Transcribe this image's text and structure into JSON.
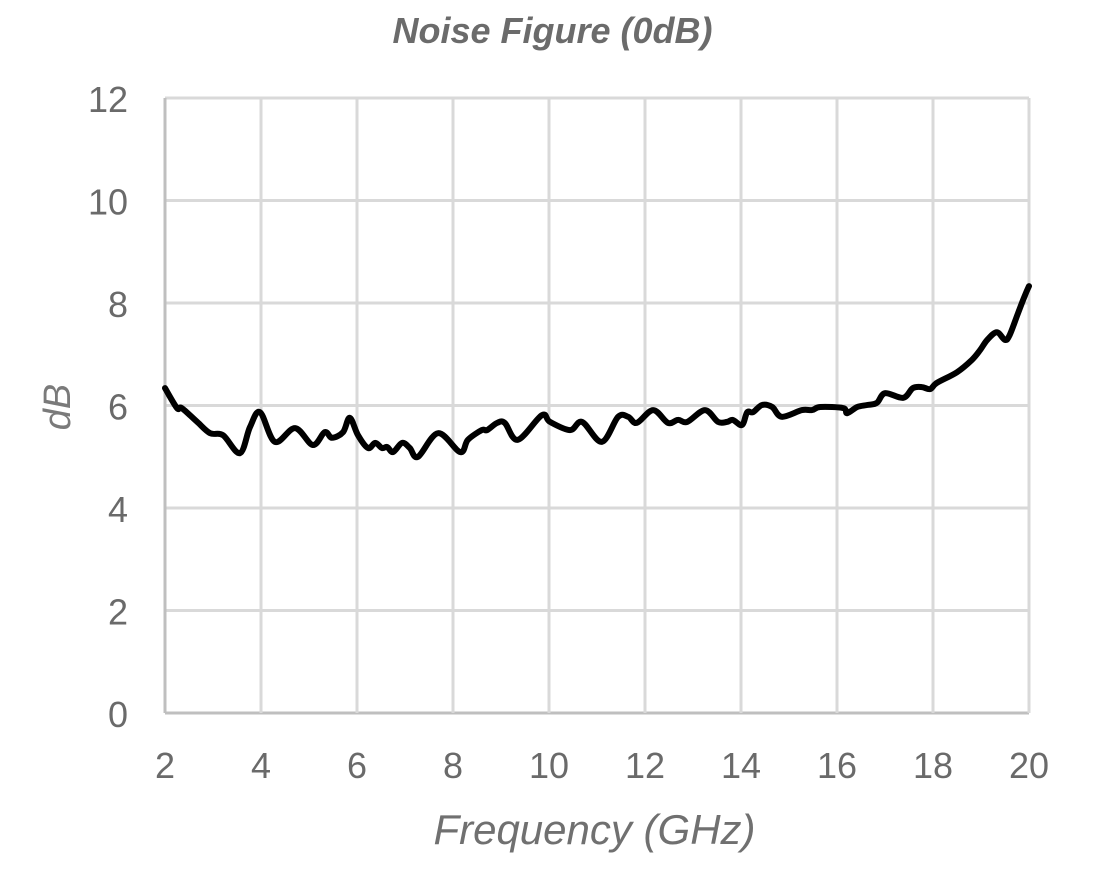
{
  "chart_data": {
    "type": "line",
    "title": "Noise Figure (0dB)",
    "xlabel": "Frequency (GHz)",
    "ylabel": "dB",
    "xlim": [
      2,
      20
    ],
    "ylim": [
      0,
      12
    ],
    "x_ticks": [
      2,
      4,
      6,
      8,
      10,
      12,
      14,
      16,
      18,
      20
    ],
    "y_ticks": [
      0,
      2,
      4,
      6,
      8,
      10,
      12
    ],
    "grid": true,
    "legend": null,
    "series": [
      {
        "name": "Noise Figure",
        "color": "#000000",
        "x": [
          2.0,
          2.25,
          2.35,
          2.67,
          2.94,
          3.21,
          3.56,
          3.77,
          3.98,
          4.29,
          4.71,
          5.08,
          5.33,
          5.48,
          5.71,
          5.85,
          6.02,
          6.23,
          6.38,
          6.52,
          6.63,
          6.75,
          6.94,
          7.1,
          7.27,
          7.69,
          8.15,
          8.31,
          8.6,
          8.71,
          8.92,
          9.08,
          9.35,
          9.85,
          10.02,
          10.44,
          10.69,
          11.1,
          11.44,
          11.65,
          11.83,
          12.17,
          12.48,
          12.69,
          12.88,
          13.25,
          13.52,
          13.71,
          13.83,
          14.02,
          14.13,
          14.25,
          14.44,
          14.65,
          14.85,
          15.27,
          15.48,
          15.65,
          16.13,
          16.21,
          16.42,
          16.63,
          16.83,
          17.0,
          17.38,
          17.58,
          17.77,
          17.94,
          18.08,
          18.5,
          18.81,
          18.98,
          19.13,
          19.33,
          19.5,
          19.6,
          19.77,
          19.92,
          20.0
        ],
        "y": [
          6.34,
          5.95,
          5.95,
          5.68,
          5.46,
          5.42,
          5.07,
          5.58,
          5.87,
          5.29,
          5.56,
          5.23,
          5.48,
          5.37,
          5.48,
          5.76,
          5.42,
          5.17,
          5.27,
          5.17,
          5.19,
          5.09,
          5.27,
          5.17,
          5.0,
          5.46,
          5.09,
          5.33,
          5.52,
          5.52,
          5.66,
          5.66,
          5.33,
          5.81,
          5.68,
          5.52,
          5.68,
          5.29,
          5.78,
          5.78,
          5.66,
          5.91,
          5.66,
          5.72,
          5.68,
          5.91,
          5.68,
          5.68,
          5.72,
          5.62,
          5.87,
          5.87,
          6.01,
          5.97,
          5.78,
          5.91,
          5.91,
          5.97,
          5.95,
          5.85,
          5.97,
          6.01,
          6.05,
          6.24,
          6.15,
          6.34,
          6.36,
          6.32,
          6.44,
          6.65,
          6.89,
          7.08,
          7.28,
          7.43,
          7.28,
          7.38,
          7.8,
          8.16,
          8.33
        ]
      }
    ]
  },
  "colors": {
    "grid": "#d9d9d9",
    "axis": "#bfbfbf",
    "line": "#000000",
    "text": "#6a6a6a"
  }
}
